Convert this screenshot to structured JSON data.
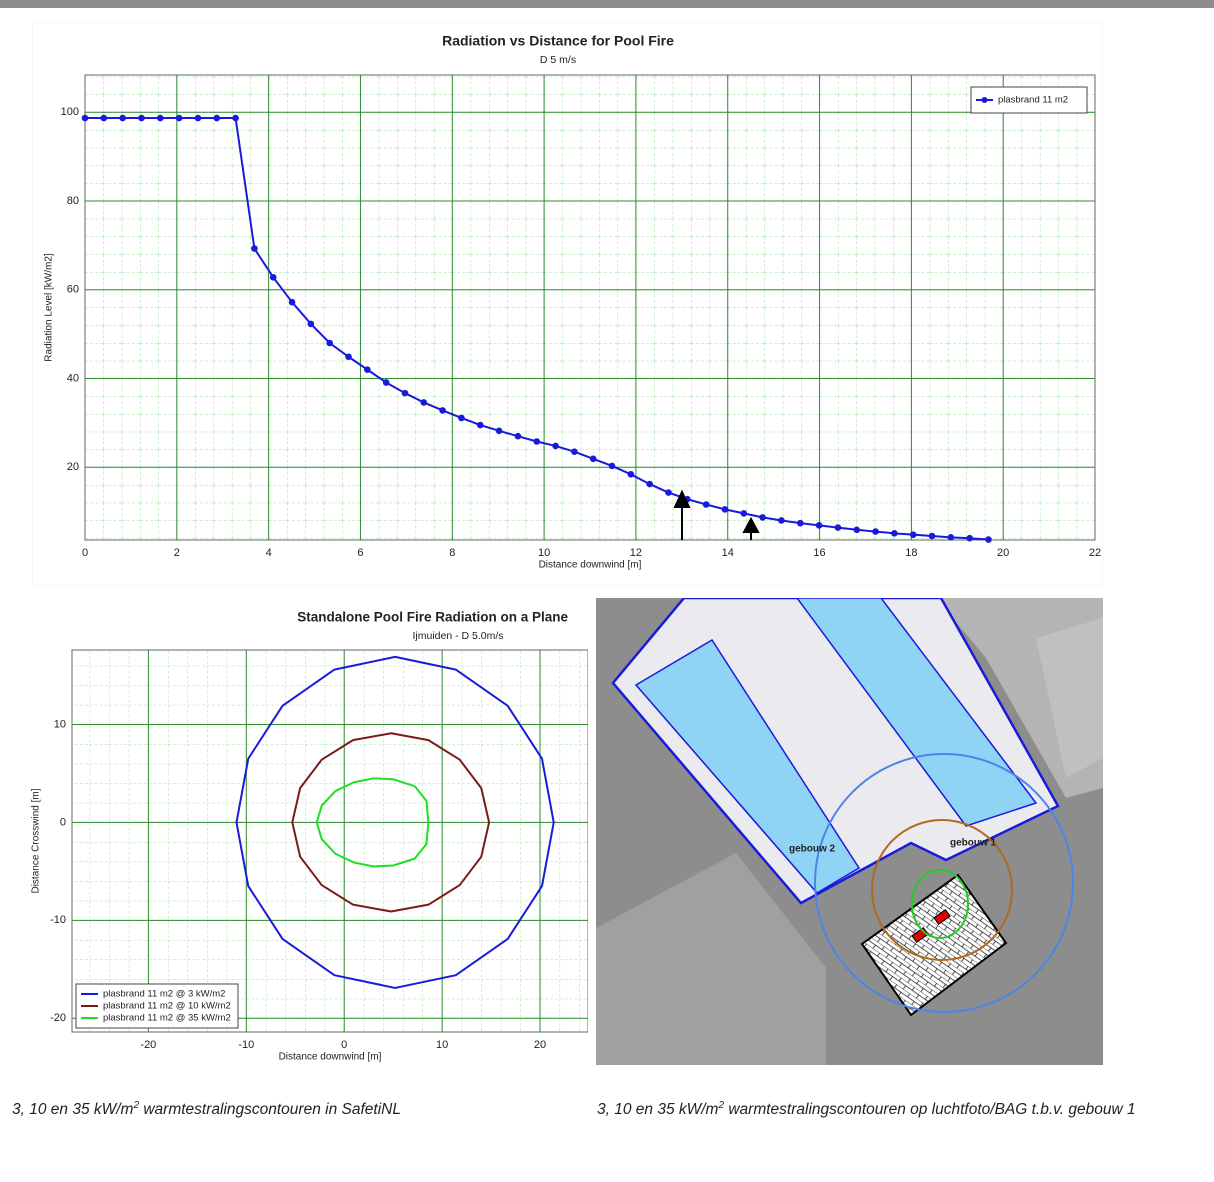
{
  "chart_data": [
    {
      "type": "line",
      "title": "Radiation vs Distance for Pool Fire",
      "subtitle": "D 5 m/s",
      "xlabel": "Distance downwind [m]",
      "ylabel": "Radiation Level [kW/m2]",
      "xlim": [
        0,
        22
      ],
      "ylim": [
        3.6,
        108.4
      ],
      "xticks": [
        0,
        2,
        4,
        6,
        8,
        10,
        12,
        14,
        16,
        18,
        20,
        22
      ],
      "yticks": [
        20,
        40,
        60,
        80,
        100
      ],
      "grid": true,
      "legend": "upper right",
      "series": [
        {
          "name": "plasbrand 11 m2",
          "color": "#1a1adb",
          "marker": "circle",
          "x": [
            0,
            0.41,
            0.82,
            1.23,
            1.64,
            2.05,
            2.46,
            2.87,
            3.28,
            3.69,
            4.1,
            4.51,
            4.92,
            5.33,
            5.74,
            6.15,
            6.56,
            6.97,
            7.38,
            7.79,
            8.2,
            8.61,
            9.02,
            9.43,
            9.84,
            10.25,
            10.66,
            11.07,
            11.48,
            11.89,
            12.3,
            12.71,
            13.12,
            13.53,
            13.94,
            14.35,
            14.76,
            15.17,
            15.58,
            15.99,
            16.4,
            16.81,
            17.22,
            17.63,
            18.04,
            18.45,
            18.86,
            19.27,
            19.68
          ],
          "values": [
            98.7,
            98.7,
            98.7,
            98.7,
            98.7,
            98.7,
            98.7,
            98.7,
            98.7,
            69.3,
            62.8,
            57.2,
            52.3,
            48,
            44.9,
            42,
            39.1,
            36.7,
            34.6,
            32.8,
            31.1,
            29.5,
            28.2,
            27,
            25.8,
            24.8,
            23.5,
            21.9,
            20.3,
            18.4,
            16.2,
            14.3,
            12.8,
            11.6,
            10.5,
            9.6,
            8.7,
            8,
            7.4,
            6.9,
            6.4,
            5.9,
            5.5,
            5.1,
            4.8,
            4.5,
            4.2,
            4,
            3.7
          ]
        }
      ]
    },
    {
      "type": "contour",
      "title": "Standalone Pool Fire Radiation on a Plane",
      "subtitle": "Ijmuiden - D 5.0m/s",
      "xlabel": "Distance downwind [m]",
      "ylabel": "Distance Crosswind [m]",
      "xlim": [
        -27.8,
        24.9
      ],
      "ylim": [
        -21.4,
        17.6
      ],
      "xticks": [
        -20,
        -10,
        0,
        10,
        20
      ],
      "yticks": [
        -20,
        -10,
        0,
        10
      ],
      "grid": true,
      "legend": "lower left",
      "series": [
        {
          "name": "plasbrand 11 m2 @ 3 kW/m2",
          "color": "#1a1adb",
          "x": [
            21.4,
            20.2,
            16.7,
            11.4,
            5.2,
            -1,
            -6.3,
            -9.8,
            -11,
            -9.8,
            -6.3,
            -1,
            5.2,
            11.4,
            16.7,
            20.2,
            21.4
          ],
          "y": [
            0,
            6.5,
            11.9,
            15.6,
            16.9,
            15.6,
            11.9,
            6.5,
            0,
            -6.5,
            -11.9,
            -15.6,
            -16.9,
            -15.6,
            -11.9,
            -6.5,
            0
          ]
        },
        {
          "name": "plasbrand 11 m2 @ 10 kW/m2",
          "color": "#7a1a1a",
          "x": [
            14.8,
            14,
            11.8,
            8.6,
            4.8,
            0.9,
            -2.3,
            -4.5,
            -5.3,
            -4.5,
            -2.3,
            0.9,
            4.8,
            8.6,
            11.8,
            14,
            14.8
          ],
          "y": [
            0,
            3.5,
            6.4,
            8.4,
            9.1,
            8.4,
            6.4,
            3.5,
            0,
            -3.5,
            -6.4,
            -8.4,
            -9.1,
            -8.4,
            -6.4,
            -3.5,
            0
          ]
        },
        {
          "name": "plasbrand 11 m2 @ 35 kW/m2",
          "color": "#22dd22",
          "x": [
            8.6,
            8.4,
            7.2,
            5,
            3,
            1,
            -0.9,
            -2.3,
            -2.8,
            -2.3,
            -0.9,
            1,
            3,
            5,
            7.2,
            8.4,
            8.6
          ],
          "y": [
            0,
            2.2,
            3.7,
            4.4,
            4.5,
            4.1,
            3.2,
            1.7,
            0,
            -1.7,
            -3.2,
            -4.1,
            -4.5,
            -4.4,
            -3.7,
            -2.2,
            0
          ]
        }
      ]
    }
  ],
  "map": {
    "labels": [
      "gebouw 1",
      "gebouw 2"
    ]
  },
  "captions": [
    {
      "before": "3, 10 en 35 kW/m",
      "sup": "2",
      "after": " warmtestralingscontouren in SafetiNL"
    },
    {
      "before": "3, 10 en 35 kW/m",
      "sup": "2",
      "after": " warmtestralingscontouren op luchtfoto/BAG t.b.v. gebouw 1"
    }
  ]
}
